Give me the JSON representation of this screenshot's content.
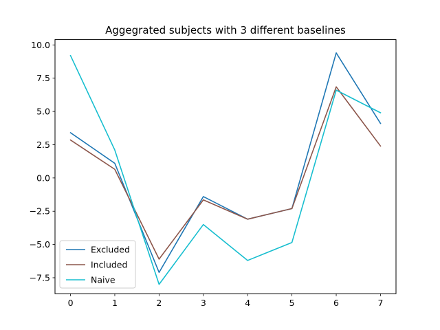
{
  "chart_data": {
    "type": "line",
    "title": "Aggegrated subjects with 3 different baselines",
    "xlabel": "",
    "ylabel": "",
    "x": [
      0,
      1,
      2,
      3,
      4,
      5,
      6,
      7
    ],
    "xlim": [
      -0.35,
      7.35
    ],
    "ylim": [
      -8.7,
      10.4
    ],
    "x_ticks": [
      0,
      1,
      2,
      3,
      4,
      5,
      6,
      7
    ],
    "x_tick_labels": [
      "0",
      "1",
      "2",
      "3",
      "4",
      "5",
      "6",
      "7"
    ],
    "y_ticks": [
      -7.5,
      -5.0,
      -2.5,
      0.0,
      2.5,
      5.0,
      7.5,
      10.0
    ],
    "y_tick_labels": [
      "−7.5",
      "−5.0",
      "−2.5",
      "0.0",
      "2.5",
      "5.0",
      "7.5",
      "10.0"
    ],
    "grid": false,
    "legend_position": "lower-left",
    "series": [
      {
        "name": "Excluded",
        "color": "#1f77b4",
        "values": [
          3.4,
          1.1,
          -7.1,
          -1.4,
          -3.1,
          -2.3,
          9.4,
          4.1
        ]
      },
      {
        "name": "Included",
        "color": "#8c564b",
        "values": [
          2.85,
          0.65,
          -6.1,
          -1.65,
          -3.1,
          -2.3,
          6.85,
          2.4
        ]
      },
      {
        "name": "Naive",
        "color": "#17becf",
        "values": [
          9.2,
          2.1,
          -8.0,
          -3.5,
          -6.2,
          -4.85,
          6.6,
          4.9
        ]
      }
    ]
  }
}
